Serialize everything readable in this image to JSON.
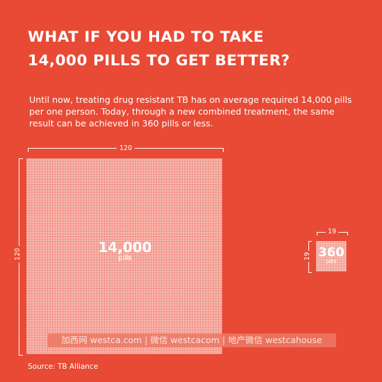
{
  "title": {
    "line1": "WHAT IF YOU HAD TO TAKE",
    "line2": "14,000 PILLS TO GET BETTER?"
  },
  "intro_text": "Until now, treating drug resistant TB has on average required 14,000 pills per one person. Today, through a new combined treatment, the same result can be achieved in 360 pills or less.",
  "big_block": {
    "width_label": "120",
    "height_label": "120",
    "count": "14,000",
    "unit": "pills"
  },
  "small_block": {
    "width_label": "19",
    "height_label": "19",
    "count": "360",
    "unit": "pills"
  },
  "watermark": "加西网 westca.com | 微信 westcacom | 地产微信 westcahouse",
  "source": "Source: TB Alliance",
  "colors": {
    "background": "#e84a35",
    "foreground": "#ffffff"
  }
}
